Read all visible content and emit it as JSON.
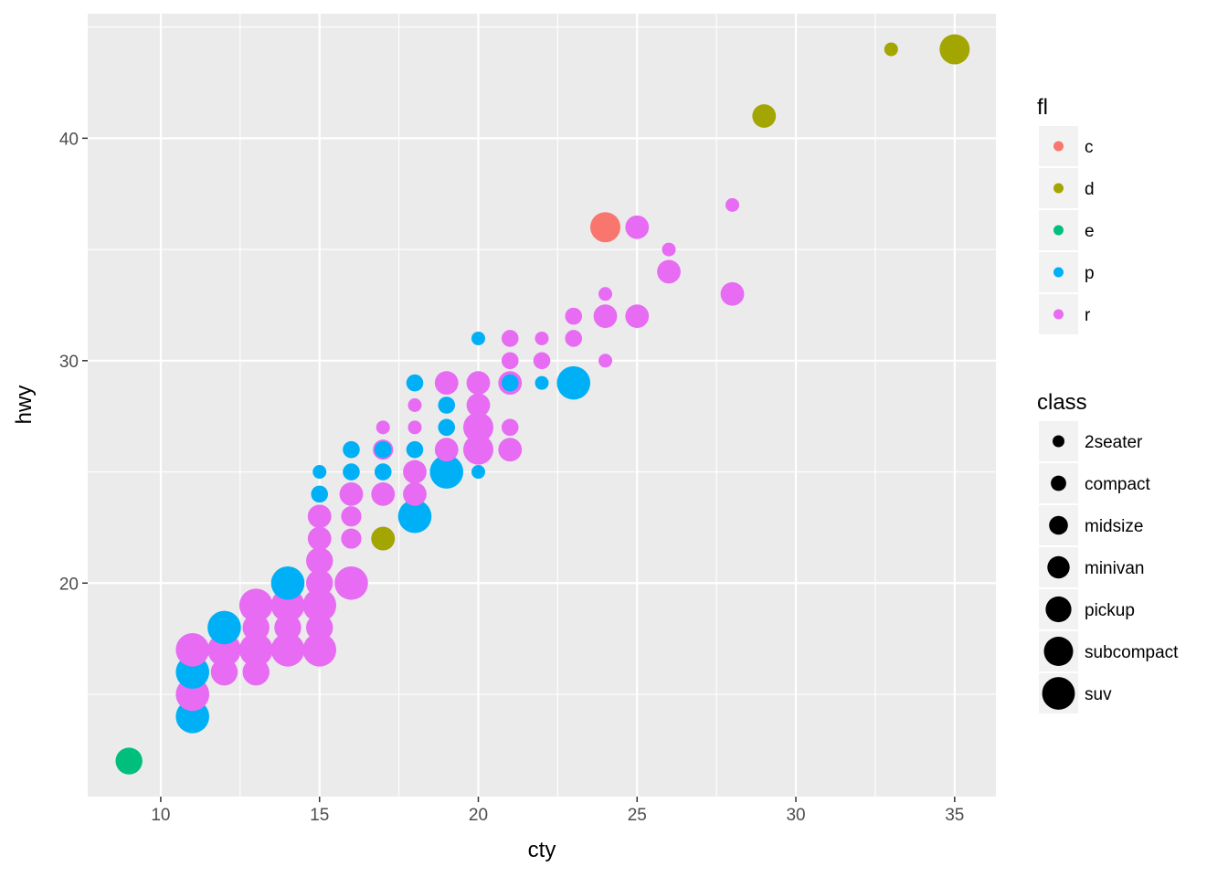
{
  "chart_data": {
    "type": "scatter",
    "xlabel": "cty",
    "ylabel": "hwy",
    "xlim": [
      7.7,
      36.3
    ],
    "ylim": [
      10.4,
      45.6
    ],
    "x_ticks": [
      10,
      15,
      20,
      25,
      30,
      35
    ],
    "y_ticks": [
      20,
      30,
      40
    ],
    "grid": true,
    "legend_position": "right",
    "color_legend": {
      "title": "fl",
      "entries": [
        {
          "label": "c",
          "color": "#F8766D"
        },
        {
          "label": "d",
          "color": "#A3A500"
        },
        {
          "label": "e",
          "color": "#00BF7D"
        },
        {
          "label": "p",
          "color": "#00B0F6"
        },
        {
          "label": "r",
          "color": "#E76BF3"
        }
      ]
    },
    "size_legend": {
      "title": "class",
      "entries": [
        {
          "label": "2seater",
          "size": 1
        },
        {
          "label": "compact",
          "size": 2
        },
        {
          "label": "midsize",
          "size": 3
        },
        {
          "label": "minivan",
          "size": 4
        },
        {
          "label": "pickup",
          "size": 5
        },
        {
          "label": "subcompact",
          "size": 6
        },
        {
          "label": "suv",
          "size": 7
        }
      ]
    },
    "points": [
      {
        "x": 9,
        "y": 12,
        "fl": "e",
        "class": "pickup"
      },
      {
        "x": 11,
        "y": 14,
        "fl": "p",
        "class": "suv"
      },
      {
        "x": 11,
        "y": 15,
        "fl": "r",
        "class": "suv"
      },
      {
        "x": 11,
        "y": 16,
        "fl": "p",
        "class": "suv"
      },
      {
        "x": 11,
        "y": 17,
        "fl": "r",
        "class": "suv"
      },
      {
        "x": 12,
        "y": 16,
        "fl": "r",
        "class": "pickup"
      },
      {
        "x": 12,
        "y": 17,
        "fl": "r",
        "class": "suv"
      },
      {
        "x": 12,
        "y": 18,
        "fl": "p",
        "class": "suv"
      },
      {
        "x": 13,
        "y": 16,
        "fl": "r",
        "class": "pickup"
      },
      {
        "x": 13,
        "y": 17,
        "fl": "r",
        "class": "suv"
      },
      {
        "x": 13,
        "y": 18,
        "fl": "r",
        "class": "pickup"
      },
      {
        "x": 13,
        "y": 19,
        "fl": "r",
        "class": "suv"
      },
      {
        "x": 14,
        "y": 17,
        "fl": "r",
        "class": "suv"
      },
      {
        "x": 14,
        "y": 18,
        "fl": "r",
        "class": "pickup"
      },
      {
        "x": 14,
        "y": 19,
        "fl": "r",
        "class": "suv"
      },
      {
        "x": 14,
        "y": 20,
        "fl": "p",
        "class": "suv"
      },
      {
        "x": 15,
        "y": 17,
        "fl": "r",
        "class": "suv"
      },
      {
        "x": 15,
        "y": 18,
        "fl": "r",
        "class": "pickup"
      },
      {
        "x": 15,
        "y": 19,
        "fl": "r",
        "class": "suv"
      },
      {
        "x": 15,
        "y": 20,
        "fl": "r",
        "class": "pickup"
      },
      {
        "x": 15,
        "y": 21,
        "fl": "r",
        "class": "pickup"
      },
      {
        "x": 15,
        "y": 22,
        "fl": "r",
        "class": "minivan"
      },
      {
        "x": 15,
        "y": 23,
        "fl": "r",
        "class": "minivan"
      },
      {
        "x": 15,
        "y": 24,
        "fl": "p",
        "class": "compact"
      },
      {
        "x": 15,
        "y": 25,
        "fl": "p",
        "class": "2seater"
      },
      {
        "x": 16,
        "y": 20,
        "fl": "r",
        "class": "suv"
      },
      {
        "x": 16,
        "y": 22,
        "fl": "r",
        "class": "midsize"
      },
      {
        "x": 16,
        "y": 23,
        "fl": "r",
        "class": "midsize"
      },
      {
        "x": 16,
        "y": 24,
        "fl": "r",
        "class": "minivan"
      },
      {
        "x": 16,
        "y": 25,
        "fl": "p",
        "class": "compact"
      },
      {
        "x": 16,
        "y": 26,
        "fl": "p",
        "class": "compact"
      },
      {
        "x": 17,
        "y": 22,
        "fl": "r",
        "class": "minivan"
      },
      {
        "x": 17,
        "y": 22,
        "fl": "d",
        "class": "minivan"
      },
      {
        "x": 17,
        "y": 24,
        "fl": "r",
        "class": "minivan"
      },
      {
        "x": 17,
        "y": 25,
        "fl": "p",
        "class": "compact"
      },
      {
        "x": 17,
        "y": 26,
        "fl": "r",
        "class": "midsize"
      },
      {
        "x": 17,
        "y": 26,
        "fl": "p",
        "class": "compact"
      },
      {
        "x": 17,
        "y": 27,
        "fl": "r",
        "class": "2seater"
      },
      {
        "x": 18,
        "y": 23,
        "fl": "p",
        "class": "suv"
      },
      {
        "x": 18,
        "y": 24,
        "fl": "r",
        "class": "minivan"
      },
      {
        "x": 18,
        "y": 25,
        "fl": "r",
        "class": "minivan"
      },
      {
        "x": 18,
        "y": 26,
        "fl": "p",
        "class": "compact"
      },
      {
        "x": 18,
        "y": 27,
        "fl": "r",
        "class": "2seater"
      },
      {
        "x": 18,
        "y": 28,
        "fl": "r",
        "class": "2seater"
      },
      {
        "x": 18,
        "y": 29,
        "fl": "p",
        "class": "compact"
      },
      {
        "x": 19,
        "y": 25,
        "fl": "p",
        "class": "suv"
      },
      {
        "x": 19,
        "y": 26,
        "fl": "r",
        "class": "minivan"
      },
      {
        "x": 19,
        "y": 27,
        "fl": "p",
        "class": "compact"
      },
      {
        "x": 19,
        "y": 28,
        "fl": "p",
        "class": "compact"
      },
      {
        "x": 19,
        "y": 29,
        "fl": "r",
        "class": "minivan"
      },
      {
        "x": 20,
        "y": 25,
        "fl": "p",
        "class": "2seater"
      },
      {
        "x": 20,
        "y": 26,
        "fl": "r",
        "class": "subcompact"
      },
      {
        "x": 20,
        "y": 27,
        "fl": "r",
        "class": "subcompact"
      },
      {
        "x": 20,
        "y": 28,
        "fl": "r",
        "class": "minivan"
      },
      {
        "x": 20,
        "y": 29,
        "fl": "r",
        "class": "minivan"
      },
      {
        "x": 20,
        "y": 31,
        "fl": "p",
        "class": "2seater"
      },
      {
        "x": 21,
        "y": 26,
        "fl": "r",
        "class": "minivan"
      },
      {
        "x": 21,
        "y": 27,
        "fl": "r",
        "class": "compact"
      },
      {
        "x": 21,
        "y": 29,
        "fl": "r",
        "class": "minivan"
      },
      {
        "x": 21,
        "y": 29,
        "fl": "p",
        "class": "compact"
      },
      {
        "x": 21,
        "y": 30,
        "fl": "r",
        "class": "compact"
      },
      {
        "x": 21,
        "y": 31,
        "fl": "r",
        "class": "compact"
      },
      {
        "x": 22,
        "y": 29,
        "fl": "p",
        "class": "2seater"
      },
      {
        "x": 22,
        "y": 30,
        "fl": "r",
        "class": "compact"
      },
      {
        "x": 22,
        "y": 31,
        "fl": "r",
        "class": "2seater"
      },
      {
        "x": 23,
        "y": 29,
        "fl": "p",
        "class": "suv"
      },
      {
        "x": 23,
        "y": 31,
        "fl": "r",
        "class": "compact"
      },
      {
        "x": 23,
        "y": 32,
        "fl": "r",
        "class": "compact"
      },
      {
        "x": 24,
        "y": 30,
        "fl": "r",
        "class": "2seater"
      },
      {
        "x": 24,
        "y": 32,
        "fl": "r",
        "class": "minivan"
      },
      {
        "x": 24,
        "y": 33,
        "fl": "r",
        "class": "2seater"
      },
      {
        "x": 24,
        "y": 36,
        "fl": "c",
        "class": "subcompact"
      },
      {
        "x": 25,
        "y": 32,
        "fl": "r",
        "class": "minivan"
      },
      {
        "x": 25,
        "y": 36,
        "fl": "r",
        "class": "minivan"
      },
      {
        "x": 26,
        "y": 34,
        "fl": "r",
        "class": "minivan"
      },
      {
        "x": 26,
        "y": 35,
        "fl": "r",
        "class": "2seater"
      },
      {
        "x": 28,
        "y": 33,
        "fl": "r",
        "class": "minivan"
      },
      {
        "x": 28,
        "y": 37,
        "fl": "r",
        "class": "2seater"
      },
      {
        "x": 29,
        "y": 41,
        "fl": "d",
        "class": "minivan"
      },
      {
        "x": 33,
        "y": 44,
        "fl": "d",
        "class": "2seater"
      },
      {
        "x": 35,
        "y": 44,
        "fl": "d",
        "class": "subcompact"
      }
    ]
  }
}
